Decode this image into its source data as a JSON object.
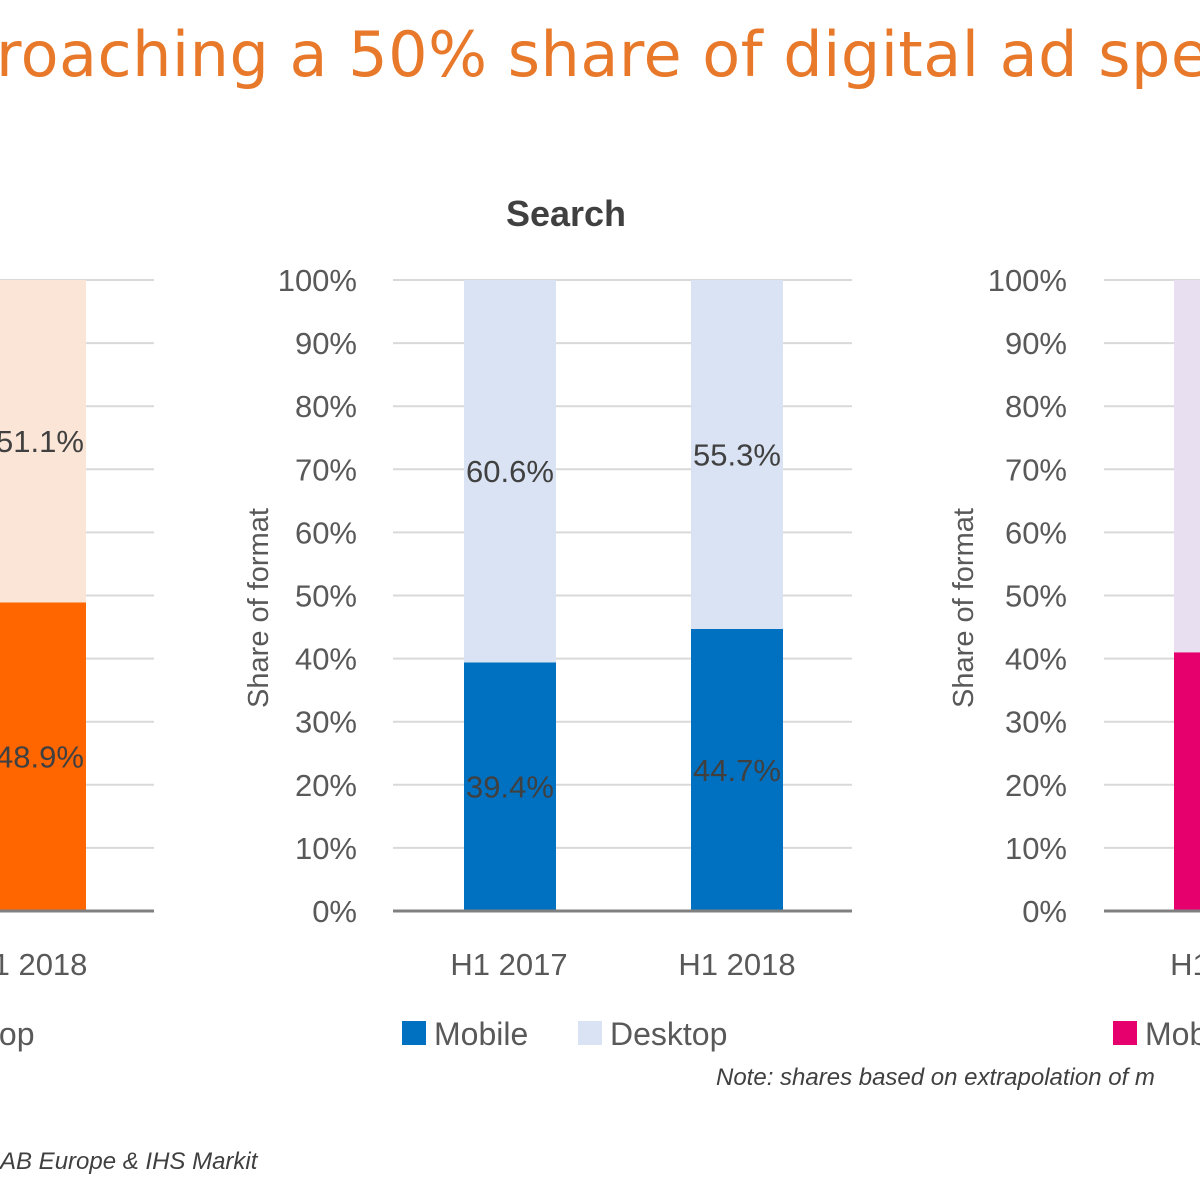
{
  "headline": "roaching a 50% share of digital ad spen",
  "note": "Note: shares based on extrapolation of m",
  "source": "AB Europe & IHS Markit",
  "chart_data": [
    {
      "type": "bar",
      "stacked": true,
      "title": "",
      "xlabel": "",
      "ylabel": "",
      "ylim": [
        0,
        100
      ],
      "categories": [
        "1 2018"
      ],
      "series": [
        {
          "name": "",
          "values": [
            48.9
          ],
          "labels": [
            "48.9%"
          ],
          "color": "#ff6600"
        },
        {
          "name": "top",
          "values": [
            51.1
          ],
          "labels": [
            "51.1%"
          ],
          "color": "#fbe5d6"
        }
      ],
      "legend_position": "bottom",
      "gridlines": true
    },
    {
      "type": "bar",
      "stacked": true,
      "title": "Search",
      "xlabel": "",
      "ylabel": "Share of format",
      "ylim": [
        0,
        100
      ],
      "yticks": [
        "0%",
        "10%",
        "20%",
        "30%",
        "40%",
        "50%",
        "60%",
        "70%",
        "80%",
        "90%",
        "100%"
      ],
      "categories": [
        "H1 2017",
        "H1 2018"
      ],
      "series": [
        {
          "name": "Mobile",
          "values": [
            39.4,
            44.7
          ],
          "labels": [
            "39.4%",
            "44.7%"
          ],
          "color": "#0070c0"
        },
        {
          "name": "Desktop",
          "values": [
            60.6,
            55.3
          ],
          "labels": [
            "60.6%",
            "55.3%"
          ],
          "color": "#dae3f3"
        }
      ],
      "legend_position": "bottom",
      "gridlines": true
    },
    {
      "type": "bar",
      "stacked": true,
      "title": "",
      "xlabel": "",
      "ylabel": "Share of format",
      "ylim": [
        0,
        100
      ],
      "yticks": [
        "0%",
        "10%",
        "20%",
        "30%",
        "40%",
        "50%",
        "60%",
        "70%",
        "80%",
        "90%",
        "100%"
      ],
      "categories": [
        "H1"
      ],
      "series": [
        {
          "name": "Mob",
          "values": [
            41
          ],
          "labels": [
            "41"
          ],
          "color": "#e6006e"
        },
        {
          "name": "",
          "values": [
            59
          ],
          "labels": [
            "59"
          ],
          "color": "#e8dff0"
        }
      ],
      "legend_position": "bottom",
      "gridlines": true
    }
  ]
}
